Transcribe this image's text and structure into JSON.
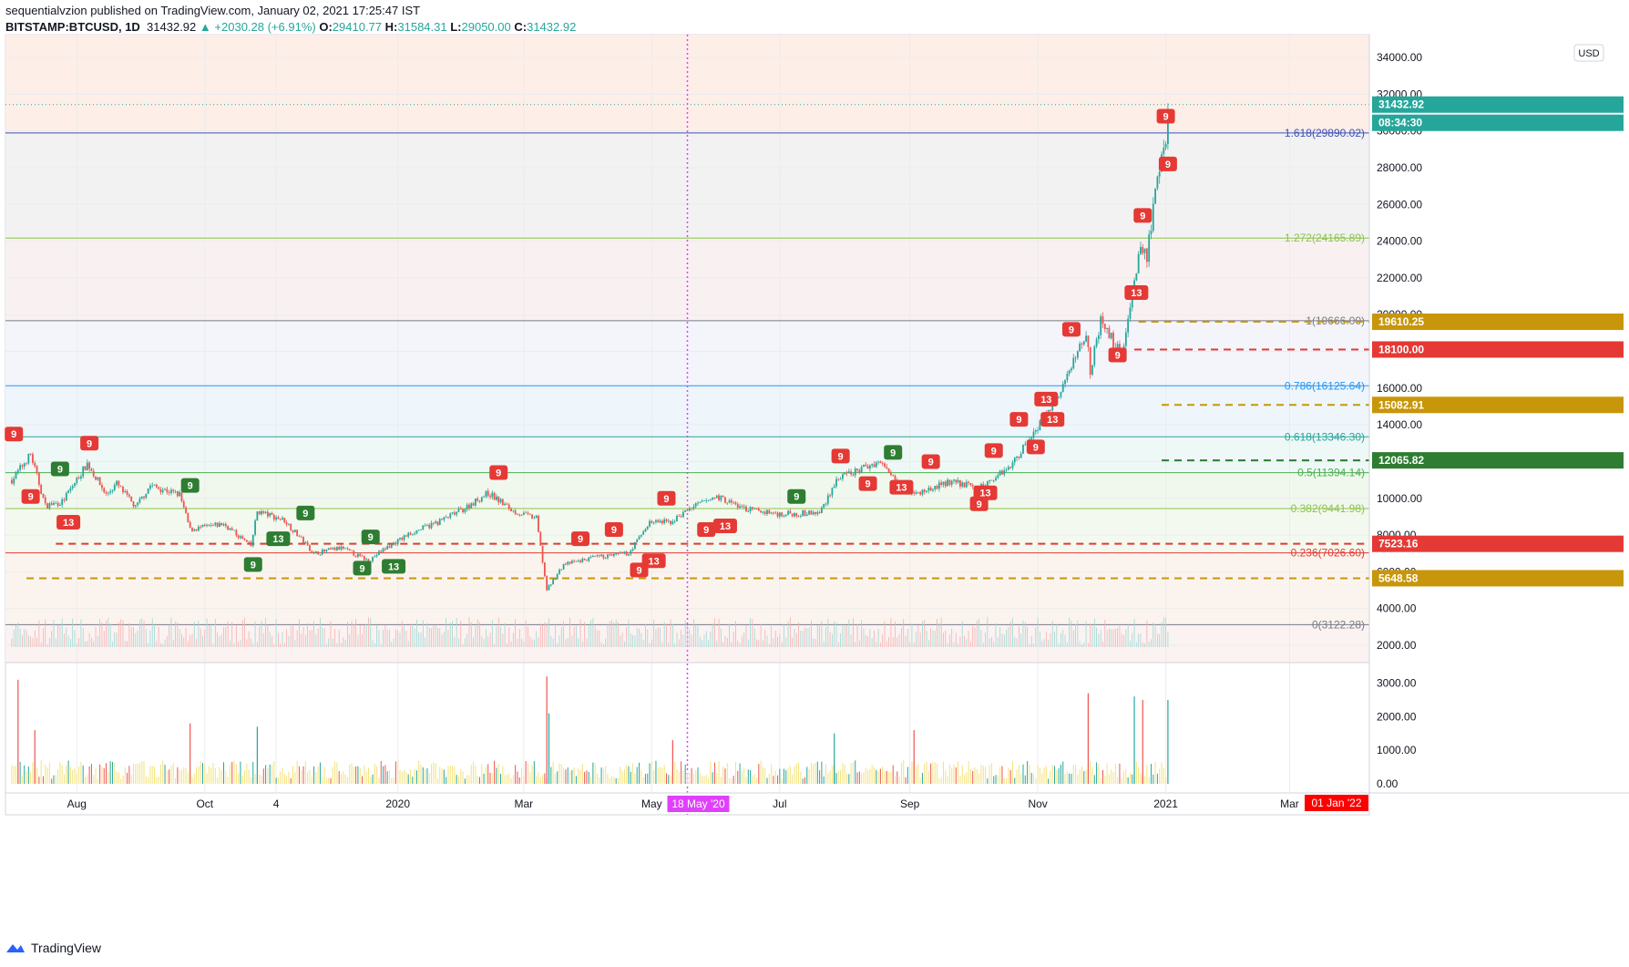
{
  "header": {
    "line1": "sequentialvzion published on TradingView.com, January 02, 2021 17:25:47 IST",
    "symbol": "BITSTAMP:BTCUSD, 1D",
    "last": "31432.92",
    "change": "+2030.28 (+6.91%)",
    "o_label": "O:",
    "o": "29410.77",
    "h_label": "H:",
    "h": "31584.31",
    "l_label": "L:",
    "l": "29050.00",
    "c_label": "C:",
    "c": "31432.92"
  },
  "footer": {
    "brand": "TradingView"
  },
  "colors": {
    "up": "#26a69a",
    "down": "#ef5350",
    "fib_top": "#3f51b5",
    "gold": "#c8960a",
    "red": "#e53935",
    "green": "#2e7d32",
    "vline": "#e040fb"
  },
  "chart_data": [
    {
      "type": "candlestick",
      "title": "BITSTAMP:BTCUSD, 1D",
      "currency": "USD",
      "x_ticks": [
        "Aug",
        "Oct",
        "4",
        "2020",
        "Mar",
        "May",
        "18 May '20",
        "Jul",
        "Sep",
        "Nov",
        "2021",
        "Mar",
        "01 Jan '22"
      ],
      "y_ticks": [
        "34000.00",
        "32000.00",
        "30000.00",
        "28000.00",
        "26000.00",
        "24000.00",
        "22000.00",
        "20000.00",
        "18000.00",
        "16000.00",
        "14000.00",
        "12000.00",
        "10000.00",
        "8000.00",
        "6000.00",
        "4000.00",
        "2000.00"
      ],
      "ylim": [
        1000,
        36000
      ],
      "price_path": [
        [
          "2019-07-01",
          11000
        ],
        [
          "2019-07-10",
          12400
        ],
        [
          "2019-07-17",
          9600
        ],
        [
          "2019-07-25",
          9800
        ],
        [
          "2019-08-06",
          11900
        ],
        [
          "2019-08-15",
          10200
        ],
        [
          "2019-08-20",
          10800
        ],
        [
          "2019-08-29",
          9500
        ],
        [
          "2019-09-05",
          10700
        ],
        [
          "2019-09-19",
          10200
        ],
        [
          "2019-09-24",
          8300
        ],
        [
          "2019-10-10",
          8600
        ],
        [
          "2019-10-23",
          7400
        ],
        [
          "2019-10-26",
          9300
        ],
        [
          "2019-11-08",
          8800
        ],
        [
          "2019-11-22",
          7000
        ],
        [
          "2019-12-05",
          7300
        ],
        [
          "2019-12-18",
          6600
        ],
        [
          "2019-12-25",
          7200
        ],
        [
          "2020-01-07",
          8100
        ],
        [
          "2020-01-20",
          8700
        ],
        [
          "2020-02-01",
          9400
        ],
        [
          "2020-02-13",
          10300
        ],
        [
          "2020-02-25",
          9300
        ],
        [
          "2020-03-07",
          8900
        ],
        [
          "2020-03-12",
          5000
        ],
        [
          "2020-03-20",
          6400
        ],
        [
          "2020-04-05",
          6800
        ],
        [
          "2020-04-20",
          7000
        ],
        [
          "2020-04-30",
          8700
        ],
        [
          "2020-05-10",
          8700
        ],
        [
          "2020-05-20",
          9500
        ],
        [
          "2020-06-01",
          10100
        ],
        [
          "2020-06-15",
          9400
        ],
        [
          "2020-07-01",
          9150
        ],
        [
          "2020-07-20",
          9200
        ],
        [
          "2020-07-28",
          11000
        ],
        [
          "2020-08-17",
          12000
        ],
        [
          "2020-09-03",
          10200
        ],
        [
          "2020-09-20",
          10900
        ],
        [
          "2020-10-05",
          10600
        ],
        [
          "2020-10-20",
          11900
        ],
        [
          "2020-10-31",
          13800
        ],
        [
          "2020-11-10",
          15300
        ],
        [
          "2020-11-24",
          19100
        ],
        [
          "2020-11-26",
          17000
        ],
        [
          "2020-12-01",
          19600
        ],
        [
          "2020-12-11",
          17800
        ],
        [
          "2020-12-16",
          21300
        ],
        [
          "2020-12-20",
          23700
        ],
        [
          "2020-12-23",
          23200
        ],
        [
          "2020-12-27",
          26500
        ],
        [
          "2021-01-01",
          29400
        ],
        [
          "2021-01-02",
          31432.92
        ]
      ],
      "last_price": 31432.92,
      "countdown": "08:34:30",
      "fib_levels": [
        {
          "label": "1.618(29890.02)",
          "value": 29890.02
        },
        {
          "label": "1.272(24165.89)",
          "value": 24165.89
        },
        {
          "label": "1(19666.00)",
          "value": 19666.0
        },
        {
          "label": "0.786(16125.64)",
          "value": 16125.64
        },
        {
          "label": "0.618(13346.30)",
          "value": 13346.3
        },
        {
          "label": "0.5(11394.14)",
          "value": 11394.14
        },
        {
          "label": "0.382(9441.98)",
          "value": 9441.98
        },
        {
          "label": "0.236(7026.60)",
          "value": 7026.6
        },
        {
          "label": "0(3122.28)",
          "value": 3122.28
        }
      ],
      "price_labels": [
        {
          "text": "19610.25",
          "value": 19610.25,
          "color": "#c8960a"
        },
        {
          "text": "18100.00",
          "value": 18100.0,
          "color": "#e53935"
        },
        {
          "text": "15082.91",
          "value": 15082.91,
          "color": "#c8960a"
        },
        {
          "text": "12065.82",
          "value": 12065.82,
          "color": "#2e7d32"
        },
        {
          "text": "7523.16",
          "value": 7523.16,
          "color": "#e53935"
        },
        {
          "text": "5648.58",
          "value": 5648.58,
          "color": "#c8960a"
        }
      ],
      "setup_badges": [
        {
          "text": "9",
          "date": "2019-07-02",
          "price": 13500,
          "color": "red"
        },
        {
          "text": "9",
          "date": "2019-07-10",
          "price": 10100,
          "color": "red"
        },
        {
          "text": "9",
          "date": "2019-07-24",
          "price": 11600,
          "color": "green"
        },
        {
          "text": "13",
          "date": "2019-07-28",
          "price": 8700,
          "color": "red"
        },
        {
          "text": "9",
          "date": "2019-08-07",
          "price": 13000,
          "color": "red"
        },
        {
          "text": "9",
          "date": "2019-09-24",
          "price": 10700,
          "color": "green"
        },
        {
          "text": "9",
          "date": "2019-10-24",
          "price": 6400,
          "color": "green"
        },
        {
          "text": "13",
          "date": "2019-11-05",
          "price": 7800,
          "color": "green"
        },
        {
          "text": "9",
          "date": "2019-11-18",
          "price": 9200,
          "color": "green"
        },
        {
          "text": "9",
          "date": "2019-12-15",
          "price": 6200,
          "color": "green"
        },
        {
          "text": "9",
          "date": "2019-12-19",
          "price": 7900,
          "color": "green"
        },
        {
          "text": "13",
          "date": "2019-12-30",
          "price": 6300,
          "color": "green"
        },
        {
          "text": "9",
          "date": "2020-02-18",
          "price": 11400,
          "color": "red"
        },
        {
          "text": "9",
          "date": "2020-03-28",
          "price": 7800,
          "color": "red"
        },
        {
          "text": "9",
          "date": "2020-04-13",
          "price": 8300,
          "color": "red"
        },
        {
          "text": "9",
          "date": "2020-04-25",
          "price": 6100,
          "color": "red"
        },
        {
          "text": "13",
          "date": "2020-05-02",
          "price": 6600,
          "color": "red"
        },
        {
          "text": "9",
          "date": "2020-05-08",
          "price": 10000,
          "color": "red"
        },
        {
          "text": "9",
          "date": "2020-05-27",
          "price": 8300,
          "color": "red"
        },
        {
          "text": "13",
          "date": "2020-06-05",
          "price": 8500,
          "color": "red"
        },
        {
          "text": "9",
          "date": "2020-07-09",
          "price": 10100,
          "color": "green"
        },
        {
          "text": "9",
          "date": "2020-07-30",
          "price": 12300,
          "color": "red"
        },
        {
          "text": "9",
          "date": "2020-08-12",
          "price": 10800,
          "color": "red"
        },
        {
          "text": "9",
          "date": "2020-08-24",
          "price": 12500,
          "color": "green"
        },
        {
          "text": "13",
          "date": "2020-08-28",
          "price": 10600,
          "color": "red"
        },
        {
          "text": "9",
          "date": "2020-09-11",
          "price": 12000,
          "color": "red"
        },
        {
          "text": "9",
          "date": "2020-10-04",
          "price": 9700,
          "color": "red"
        },
        {
          "text": "13",
          "date": "2020-10-07",
          "price": 10300,
          "color": "red"
        },
        {
          "text": "9",
          "date": "2020-10-11",
          "price": 12600,
          "color": "red"
        },
        {
          "text": "9",
          "date": "2020-10-23",
          "price": 14300,
          "color": "red"
        },
        {
          "text": "9",
          "date": "2020-10-31",
          "price": 12800,
          "color": "red"
        },
        {
          "text": "13",
          "date": "2020-11-05",
          "price": 15400,
          "color": "red"
        },
        {
          "text": "13",
          "date": "2020-11-08",
          "price": 14300,
          "color": "red"
        },
        {
          "text": "9",
          "date": "2020-11-17",
          "price": 19200,
          "color": "red"
        },
        {
          "text": "9",
          "date": "2020-12-09",
          "price": 17800,
          "color": "red"
        },
        {
          "text": "13",
          "date": "2020-12-18",
          "price": 21200,
          "color": "red"
        },
        {
          "text": "9",
          "date": "2020-12-21",
          "price": 25400,
          "color": "red"
        },
        {
          "text": "9",
          "date": "2021-01-02",
          "price": 28200,
          "color": "red"
        },
        {
          "text": "9",
          "date": "2021-01-01",
          "price": 30800,
          "color": "red"
        }
      ],
      "volume": {
        "ylim": [
          0,
          3300
        ],
        "y_ticks": [
          "3000.00",
          "2000.00",
          "1000.00",
          "0.00"
        ],
        "spikes": [
          {
            "date": "2019-07-04",
            "value": 3100,
            "color": "red"
          },
          {
            "date": "2019-07-12",
            "value": 1600,
            "color": "red"
          },
          {
            "date": "2019-09-24",
            "value": 1800,
            "color": "red"
          },
          {
            "date": "2019-10-26",
            "value": 1700,
            "color": "green"
          },
          {
            "date": "2020-03-12",
            "value": 3200,
            "color": "red"
          },
          {
            "date": "2020-03-13",
            "value": 2100,
            "color": "green"
          },
          {
            "date": "2020-05-11",
            "value": 1300,
            "color": "red"
          },
          {
            "date": "2020-07-27",
            "value": 1500,
            "color": "green"
          },
          {
            "date": "2020-09-03",
            "value": 1600,
            "color": "red"
          },
          {
            "date": "2020-11-25",
            "value": 2700,
            "color": "red"
          },
          {
            "date": "2020-12-17",
            "value": 2600,
            "color": "green"
          },
          {
            "date": "2020-12-21",
            "value": 2500,
            "color": "red"
          },
          {
            "date": "2021-01-02",
            "value": 2500,
            "color": "green"
          }
        ]
      }
    }
  ]
}
